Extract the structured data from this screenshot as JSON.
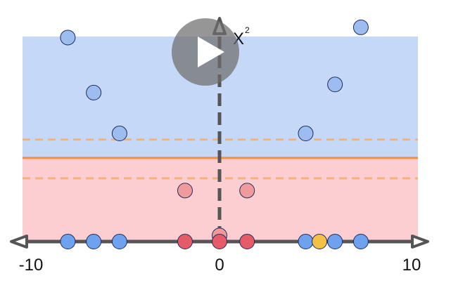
{
  "axis_labels": {
    "x_min": "-10",
    "x_mid": "0",
    "x_max": "10",
    "y_label": "X",
    "y_label_sup": "2"
  },
  "colors": {
    "blue_region": "#c6d8f8",
    "red_region": "#fccdd1",
    "blue_point": "#6fa2ee",
    "light_blue_point": "#9dbcef",
    "red_point": "#e55b68",
    "light_red_point": "#f09a9c",
    "yellow_point": "#f3c146",
    "decision_line": "#f0913e",
    "margin_line": "#f4b27a",
    "axis": "#555555"
  },
  "chart_data": {
    "type": "scatter",
    "x_range": [
      -10,
      10
    ],
    "threshold_y": 0.41,
    "margin_y": [
      0.5,
      0.31
    ],
    "axis_points": [
      {
        "x": -8.8,
        "cls": "blue"
      },
      {
        "x": -7.3,
        "cls": "blue"
      },
      {
        "x": -5.8,
        "cls": "blue"
      },
      {
        "x": -2.0,
        "cls": "red"
      },
      {
        "x": 0.0,
        "cls": "red"
      },
      {
        "x": 1.6,
        "cls": "red"
      },
      {
        "x": 5.0,
        "cls": "blue"
      },
      {
        "x": 5.8,
        "cls": "yellow"
      },
      {
        "x": 6.7,
        "cls": "blue"
      },
      {
        "x": 8.2,
        "cls": "blue"
      }
    ],
    "lifted_points": [
      {
        "x": -8.8,
        "y": 1.0,
        "cls": "light-blue"
      },
      {
        "x": -7.3,
        "y": 0.73,
        "cls": "light-blue"
      },
      {
        "x": -5.8,
        "y": 0.53,
        "cls": "light-blue"
      },
      {
        "x": -2.0,
        "y": 0.25,
        "cls": "light-red"
      },
      {
        "x": 0.0,
        "y": 0.03,
        "cls": "light-red"
      },
      {
        "x": 1.6,
        "y": 0.25,
        "cls": "light-red"
      },
      {
        "x": 5.0,
        "y": 0.53,
        "cls": "light-blue"
      },
      {
        "x": 6.7,
        "y": 0.77,
        "cls": "light-blue"
      },
      {
        "x": 8.2,
        "y": 1.05,
        "cls": "light-blue"
      }
    ]
  }
}
